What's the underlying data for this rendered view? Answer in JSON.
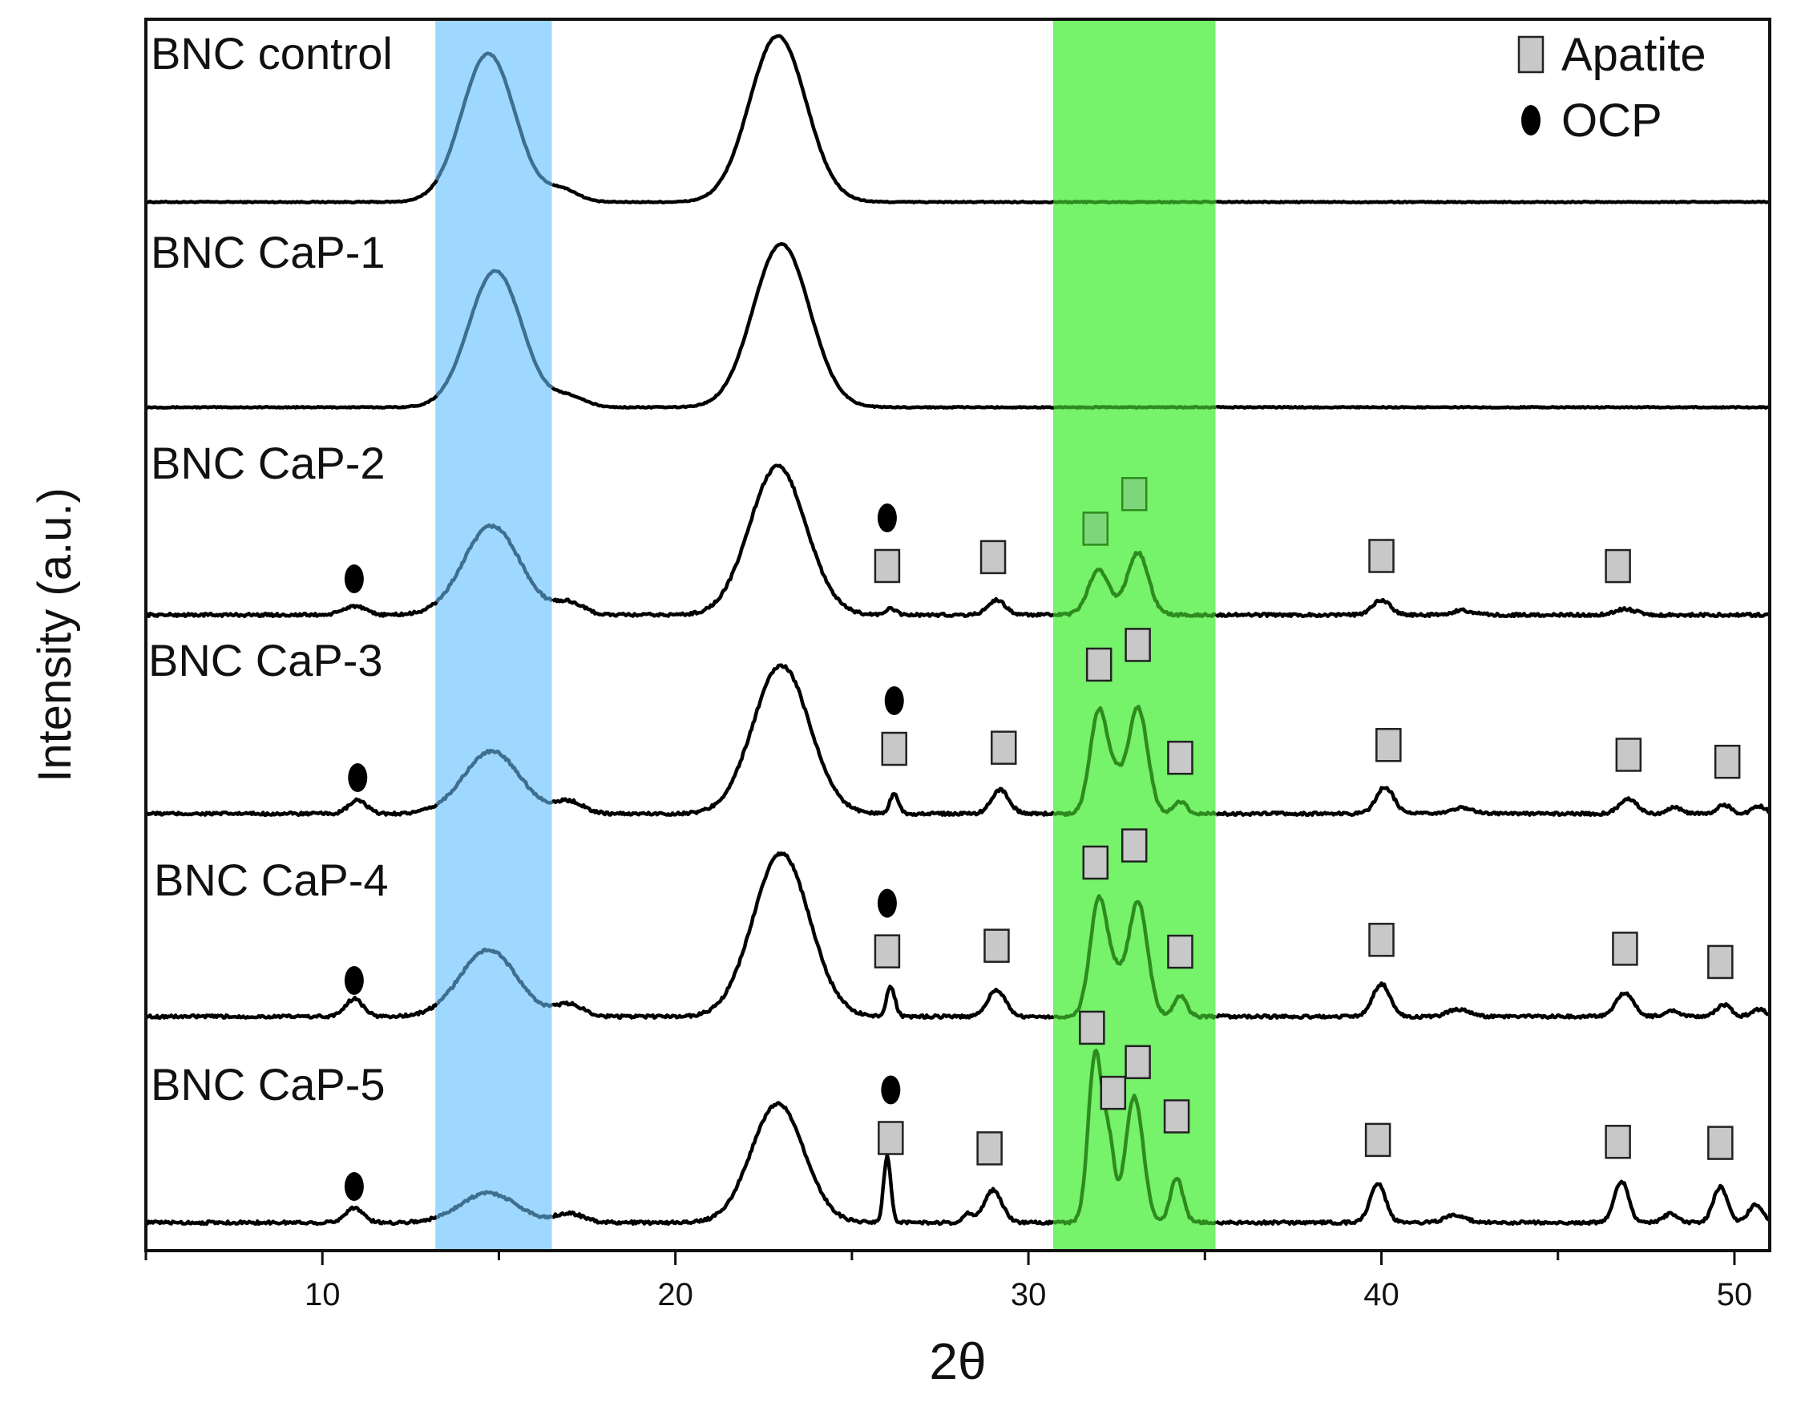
{
  "chart_data": {
    "type": "line",
    "title": "",
    "xlabel": "2θ",
    "ylabel": "Intensity (a.u.)",
    "xlim": [
      5,
      51
    ],
    "x_ticks": [
      10,
      20,
      30,
      40,
      50
    ],
    "y_ticks_shown": false,
    "grid": false,
    "legend_position": "top-right",
    "legend": [
      {
        "label": "Apatite",
        "marker": "square",
        "color": "#c8c8c8"
      },
      {
        "label": "OCP",
        "marker": "ellipse",
        "color": "#000000"
      }
    ],
    "highlight_bands": [
      {
        "name": "cellulose-band",
        "x": [
          13.2,
          16.5
        ],
        "color": "#9fd8ff"
      },
      {
        "name": "apatite-band",
        "x": [
          30.7,
          35.3
        ],
        "color": "#76f26b"
      }
    ],
    "colors": {
      "line": "#000000",
      "line_in_green": "#2e8b1f",
      "line_in_blue": "#3f6f8f",
      "apatite_marker": "#c8c8c8",
      "ocp_marker": "#000000"
    },
    "series": [
      {
        "name": "BNC control",
        "noise": 0.03,
        "peaks": [
          [
            14.7,
            1.0,
            0.75
          ],
          [
            16.8,
            0.08,
            0.45
          ],
          [
            22.9,
            1.12,
            0.8
          ]
        ],
        "apatite": [],
        "ocp": []
      },
      {
        "name": "BNC CaP-1",
        "noise": 0.03,
        "peaks": [
          [
            14.9,
            0.92,
            0.75
          ],
          [
            17.0,
            0.07,
            0.45
          ],
          [
            23.0,
            1.1,
            0.8
          ]
        ],
        "apatite": [],
        "ocp": []
      },
      {
        "name": "BNC CaP-2",
        "noise": 0.08,
        "peaks": [
          [
            10.9,
            0.06,
            0.3
          ],
          [
            14.8,
            0.6,
            0.8
          ],
          [
            17.0,
            0.08,
            0.4
          ],
          [
            22.9,
            1.0,
            0.8
          ],
          [
            26.1,
            0.04,
            0.15
          ],
          [
            29.1,
            0.1,
            0.25
          ],
          [
            32.0,
            0.3,
            0.3
          ],
          [
            33.1,
            0.42,
            0.3
          ],
          [
            40.0,
            0.1,
            0.25
          ],
          [
            42.3,
            0.03,
            0.3
          ],
          [
            46.9,
            0.04,
            0.3
          ]
        ],
        "apatite": [
          26.0,
          29.0,
          31.9,
          33.0,
          40.0,
          46.7
        ],
        "ocp": [
          26.0,
          10.9
        ]
      },
      {
        "name": "BNC CaP-3",
        "noise": 0.08,
        "peaks": [
          [
            11.0,
            0.09,
            0.25
          ],
          [
            14.8,
            0.42,
            0.8
          ],
          [
            17.0,
            0.08,
            0.4
          ],
          [
            23.0,
            1.0,
            0.8
          ],
          [
            26.2,
            0.14,
            0.12
          ],
          [
            29.2,
            0.16,
            0.25
          ],
          [
            32.0,
            0.7,
            0.25
          ],
          [
            33.1,
            0.72,
            0.27
          ],
          [
            32.5,
            0.18,
            0.2
          ],
          [
            34.3,
            0.08,
            0.18
          ],
          [
            40.1,
            0.18,
            0.25
          ],
          [
            42.3,
            0.04,
            0.3
          ],
          [
            47.0,
            0.1,
            0.25
          ],
          [
            48.3,
            0.04,
            0.2
          ],
          [
            49.7,
            0.06,
            0.2
          ],
          [
            50.7,
            0.05,
            0.2
          ]
        ],
        "apatite": [
          26.2,
          29.3,
          32.0,
          33.1,
          34.3,
          40.2,
          47.0,
          49.8
        ],
        "ocp": [
          26.2,
          11.0
        ]
      },
      {
        "name": "BNC CaP-4",
        "noise": 0.08,
        "peaks": [
          [
            10.9,
            0.12,
            0.25
          ],
          [
            14.7,
            0.45,
            0.8
          ],
          [
            17.0,
            0.08,
            0.4
          ],
          [
            23.0,
            1.1,
            0.8
          ],
          [
            26.1,
            0.2,
            0.12
          ],
          [
            29.1,
            0.18,
            0.25
          ],
          [
            32.0,
            0.8,
            0.25
          ],
          [
            33.1,
            0.78,
            0.27
          ],
          [
            32.5,
            0.2,
            0.2
          ],
          [
            34.3,
            0.14,
            0.18
          ],
          [
            40.0,
            0.22,
            0.25
          ],
          [
            42.2,
            0.05,
            0.3
          ],
          [
            46.9,
            0.16,
            0.25
          ],
          [
            48.2,
            0.04,
            0.2
          ],
          [
            49.7,
            0.08,
            0.2
          ],
          [
            50.7,
            0.05,
            0.2
          ]
        ],
        "apatite": [
          26.0,
          29.1,
          31.9,
          33.0,
          34.3,
          40.0,
          46.9,
          49.6
        ],
        "ocp": [
          26.0,
          10.9
        ]
      },
      {
        "name": "BNC CaP-5",
        "noise": 0.08,
        "peaks": [
          [
            10.9,
            0.1,
            0.25
          ],
          [
            14.7,
            0.2,
            0.8
          ],
          [
            17.0,
            0.06,
            0.4
          ],
          [
            22.9,
            0.8,
            0.75
          ],
          [
            26.0,
            0.45,
            0.1
          ],
          [
            28.3,
            0.06,
            0.15
          ],
          [
            29.0,
            0.22,
            0.25
          ],
          [
            31.9,
            1.15,
            0.2
          ],
          [
            32.3,
            0.45,
            0.15
          ],
          [
            33.0,
            0.85,
            0.25
          ],
          [
            34.2,
            0.3,
            0.18
          ],
          [
            39.9,
            0.26,
            0.22
          ],
          [
            42.1,
            0.05,
            0.3
          ],
          [
            46.8,
            0.28,
            0.2
          ],
          [
            48.2,
            0.06,
            0.2
          ],
          [
            49.6,
            0.24,
            0.2
          ],
          [
            50.6,
            0.12,
            0.2
          ]
        ],
        "apatite": [
          26.1,
          28.9,
          31.8,
          32.4,
          33.1,
          34.2,
          39.9,
          46.7,
          49.6
        ],
        "ocp": [
          26.1,
          10.9
        ]
      }
    ]
  }
}
